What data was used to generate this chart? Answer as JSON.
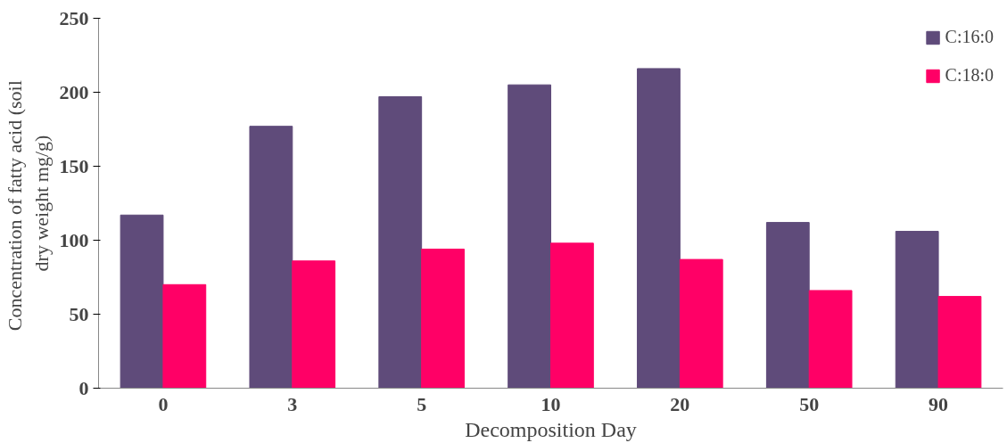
{
  "chart_data": {
    "type": "bar",
    "xlabel": "Decomposition Day",
    "ylabel": "Concentration of fatty acid  (soil dry weight mg/g)",
    "categories": [
      "0",
      "3",
      "5",
      "10",
      "20",
      "50",
      "90"
    ],
    "series": [
      {
        "name": "C:16:0",
        "color": "#5f4b7a",
        "values": [
          117,
          177,
          197,
          205,
          216,
          112,
          106
        ]
      },
      {
        "name": "C:18:0",
        "color": "#ff0066",
        "values": [
          70,
          86,
          94,
          98,
          87,
          66,
          62
        ]
      }
    ],
    "ylim": [
      0,
      250
    ],
    "yticks": [
      0,
      50,
      100,
      150,
      200,
      250
    ],
    "grid": false,
    "legend": "top right"
  }
}
